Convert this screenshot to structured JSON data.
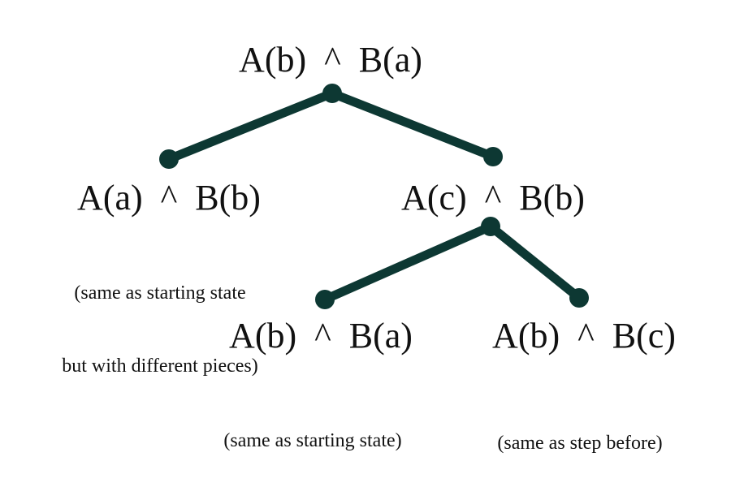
{
  "colors": {
    "edge": "#0d3833",
    "text": "#111111",
    "background": "#ffffff"
  },
  "tree": {
    "root": {
      "label": "A(b)  ^  B(a)"
    },
    "left_child": {
      "label": "A(a)  ^  B(b)",
      "note_lines": [
        "(same as starting state",
        "but with different pieces)"
      ]
    },
    "right_child": {
      "label": "A(c)  ^  B(b)"
    },
    "right_left_child": {
      "label": "A(b)  ^  B(a)",
      "note_lines": [
        "(same as starting state)"
      ]
    },
    "right_right_child": {
      "label": "A(b)  ^  B(c)",
      "note_lines": [
        "(same as step before)"
      ]
    }
  }
}
